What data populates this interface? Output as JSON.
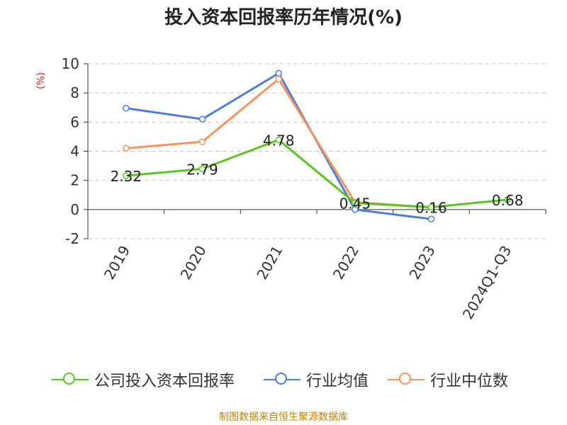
{
  "title": "投入资本回报率历年情况(%)",
  "footer": "制图数据来自恒生聚源数据库",
  "chart_data": {
    "type": "line",
    "title": "投入资本回报率历年情况(%)",
    "ylabel": "(%)",
    "xlabel": "",
    "categories": [
      "2019",
      "2020",
      "2021",
      "2022",
      "2023",
      "2024Q1-Q3"
    ],
    "ylim": [
      -2,
      10
    ],
    "yticks": [
      -2,
      0,
      2,
      4,
      6,
      8,
      10
    ],
    "ytick_labels": [
      "-2",
      "0",
      "2",
      "4",
      "6",
      "8",
      "10"
    ],
    "grid": true,
    "legend_position": "bottom",
    "series": [
      {
        "name": "公司投入资本回报率",
        "color": "#5cc41f",
        "values": [
          2.32,
          2.79,
          4.78,
          0.45,
          0.16,
          0.68
        ],
        "labels": [
          "2.32",
          "2.79",
          "4.78",
          "0.45",
          "0.16",
          "0.68"
        ]
      },
      {
        "name": "行业均值",
        "color": "#4e7ed9",
        "values": [
          6.95,
          6.2,
          9.35,
          0.0,
          -0.65,
          null
        ]
      },
      {
        "name": "行业中位数",
        "color": "#f7935c",
        "values": [
          4.2,
          4.65,
          8.95,
          0.5,
          0.15,
          null
        ]
      }
    ]
  }
}
